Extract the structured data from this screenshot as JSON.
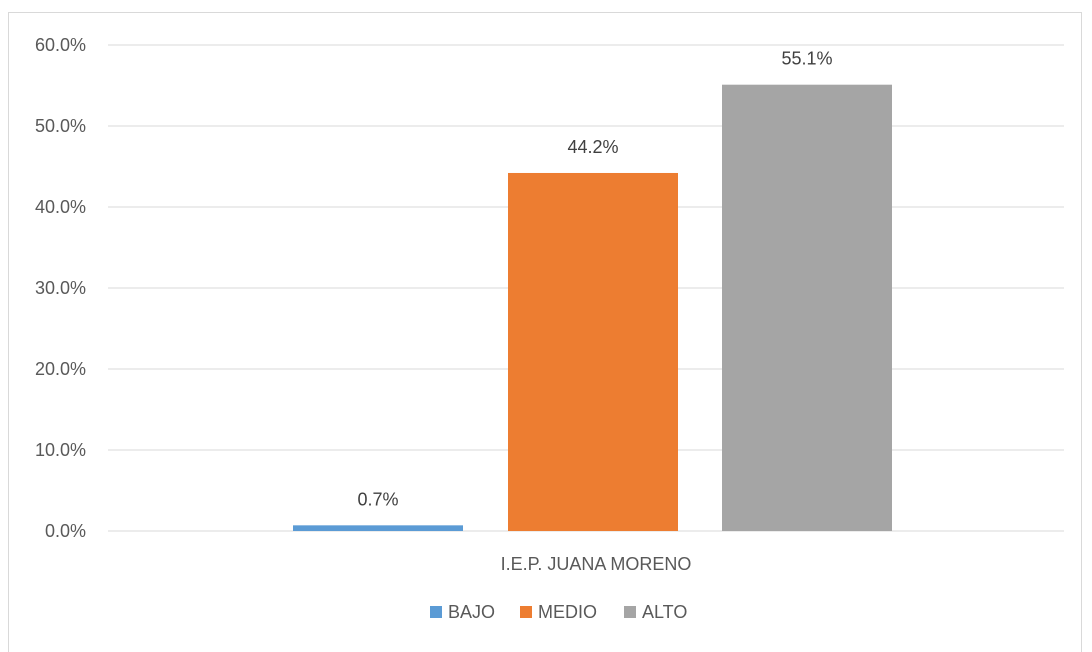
{
  "chart_data": {
    "type": "bar",
    "categories": [
      "I.E.P. JUANA MORENO"
    ],
    "series": [
      {
        "name": "BAJO",
        "values": [
          0.7
        ],
        "color": "#5b9bd5"
      },
      {
        "name": "MEDIO",
        "values": [
          44.2
        ],
        "color": "#ed7d31"
      },
      {
        "name": "ALTO",
        "values": [
          55.1
        ],
        "color": "#a5a5a5"
      }
    ],
    "data_labels": [
      "0.7%",
      "44.2%",
      "55.1%"
    ],
    "y_ticks": [
      "0.0%",
      "10.0%",
      "20.0%",
      "30.0%",
      "40.0%",
      "50.0%",
      "60.0%"
    ],
    "ylim": [
      0,
      60
    ],
    "title": "",
    "xlabel": "",
    "ylabel": "",
    "grid": true,
    "legend_position": "bottom"
  }
}
